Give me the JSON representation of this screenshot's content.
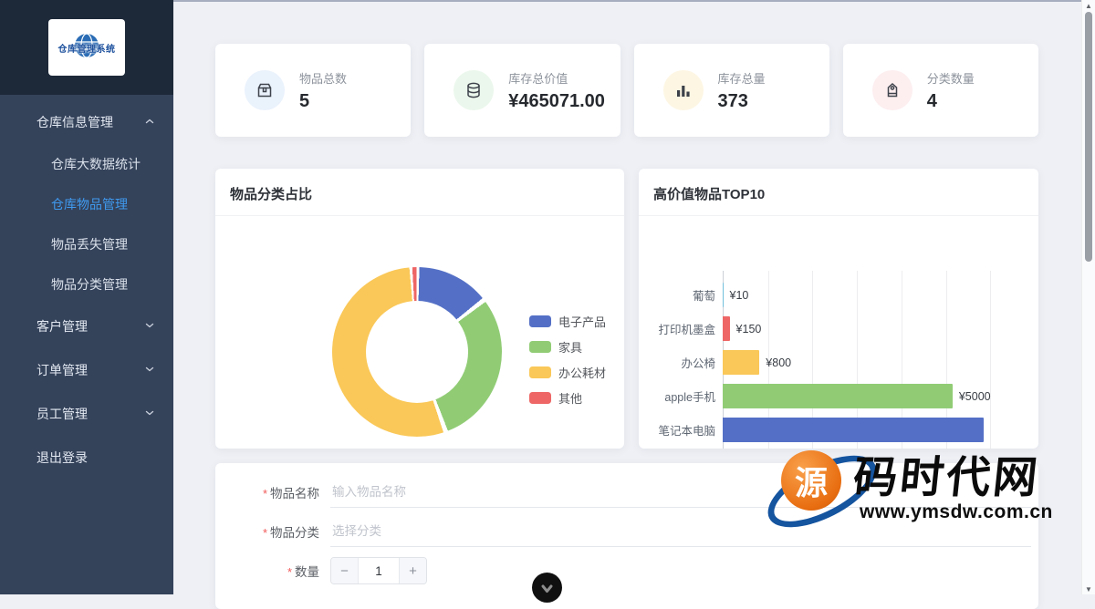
{
  "app": {
    "logo_title": "仓库管理系统",
    "accent_color": "#409eff",
    "sidebar_bg": "#34425a",
    "sidebar_header_bg": "#1d2939"
  },
  "sidebar": {
    "items": [
      {
        "label": "仓库信息管理",
        "level": "root",
        "chevron": "up",
        "active": false
      },
      {
        "label": "仓库大数据统计",
        "level": "sub",
        "active": false
      },
      {
        "label": "仓库物品管理",
        "level": "sub",
        "active": true
      },
      {
        "label": "物品丢失管理",
        "level": "sub",
        "active": false
      },
      {
        "label": "物品分类管理",
        "level": "sub",
        "active": false
      },
      {
        "label": "客户管理",
        "level": "root",
        "chevron": "down",
        "active": false
      },
      {
        "label": "订单管理",
        "level": "root",
        "chevron": "down",
        "active": false
      },
      {
        "label": "员工管理",
        "level": "root",
        "chevron": "down",
        "active": false
      },
      {
        "label": "退出登录",
        "level": "root",
        "active": false
      }
    ]
  },
  "stats": {
    "cards": [
      {
        "label": "物品总数",
        "value": "5",
        "icon": "package-icon",
        "icon_bg": "#eaf2fc"
      },
      {
        "label": "库存总价值",
        "value": "¥465071.00",
        "icon": "coins-icon",
        "icon_bg": "#ebf7ec"
      },
      {
        "label": "库存总量",
        "value": "373",
        "icon": "bar-chart-icon",
        "icon_bg": "#fdf6e3"
      },
      {
        "label": "分类数量",
        "value": "4",
        "icon": "tag-icon",
        "icon_bg": "#fdeef0"
      }
    ]
  },
  "pie_card": {
    "title": "物品分类占比"
  },
  "bar_card": {
    "title": "高价值物品TOP10"
  },
  "chart_data": [
    {
      "type": "pie",
      "donut": true,
      "title": "物品分类占比",
      "legend_position": "right",
      "labels": [
        "电子产品",
        "家具",
        "办公耗材",
        "其他"
      ],
      "values_pct": [
        14.5,
        30,
        54.5,
        1
      ],
      "colors": [
        "#5470c6",
        "#91cc75",
        "#fac858",
        "#ee6666"
      ]
    },
    {
      "type": "bar",
      "orientation": "horizontal",
      "title": "高价值物品TOP10",
      "categories": [
        "葡萄",
        "打印机墨盒",
        "办公椅",
        "apple手机",
        "笔记本电脑"
      ],
      "values": [
        10,
        150,
        800,
        5000,
        5670
      ],
      "value_labels": [
        "¥10",
        "¥150",
        "¥800",
        "¥5000",
        ""
      ],
      "colors": [
        "#73c0de",
        "#ee6666",
        "#fac858",
        "#91cc75",
        "#5470c6"
      ],
      "xlim": [
        0,
        6670
      ],
      "gridlines_every": 1000,
      "grid": true
    }
  ],
  "form": {
    "fields": [
      {
        "label": "物品名称",
        "required": true,
        "control": "text",
        "placeholder": "输入物品名称",
        "value": ""
      },
      {
        "label": "物品分类",
        "required": true,
        "control": "select",
        "placeholder": "选择分类",
        "value": ""
      },
      {
        "label": "数量",
        "required": true,
        "control": "stepper",
        "value": "1",
        "minus_label": "−",
        "plus_label": "+"
      }
    ]
  },
  "watermark": {
    "logo_char": "源",
    "title": "码时代网",
    "url": "www.ymsdw.com.cn"
  },
  "scrollbar": {
    "up_glyph": "▲",
    "down_glyph": "▼"
  }
}
